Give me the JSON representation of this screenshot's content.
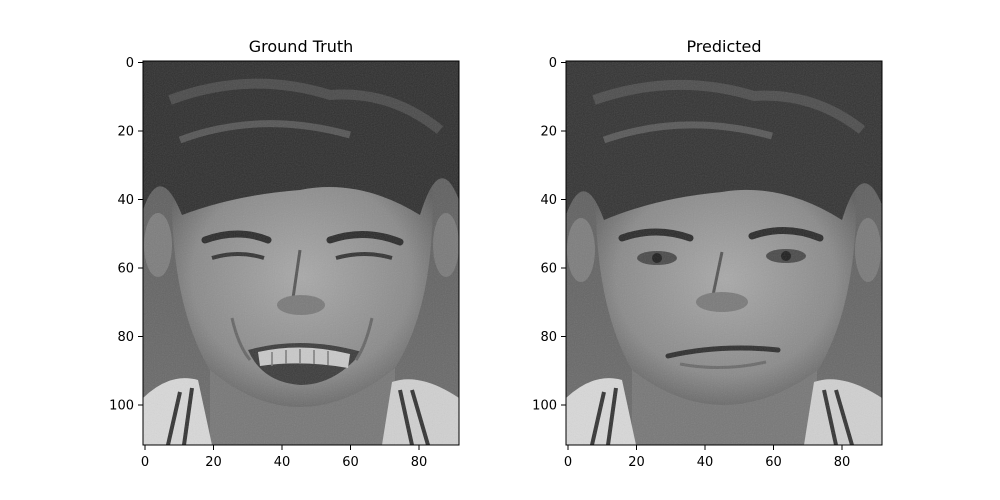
{
  "figure": {
    "panels": [
      {
        "title": "Ground Truth",
        "x_ticks": [
          "0",
          "20",
          "40",
          "60",
          "80"
        ],
        "y_ticks": [
          "0",
          "20",
          "40",
          "60",
          "80",
          "100"
        ],
        "expression": "grimace"
      },
      {
        "title": "Predicted",
        "x_ticks": [
          "0",
          "20",
          "40",
          "60",
          "80"
        ],
        "y_ticks": [
          "0",
          "20",
          "40",
          "60",
          "80",
          "100"
        ],
        "expression": "neutral"
      }
    ],
    "image_size": {
      "width": 92,
      "height": 112
    },
    "colormap": "grayscale"
  }
}
